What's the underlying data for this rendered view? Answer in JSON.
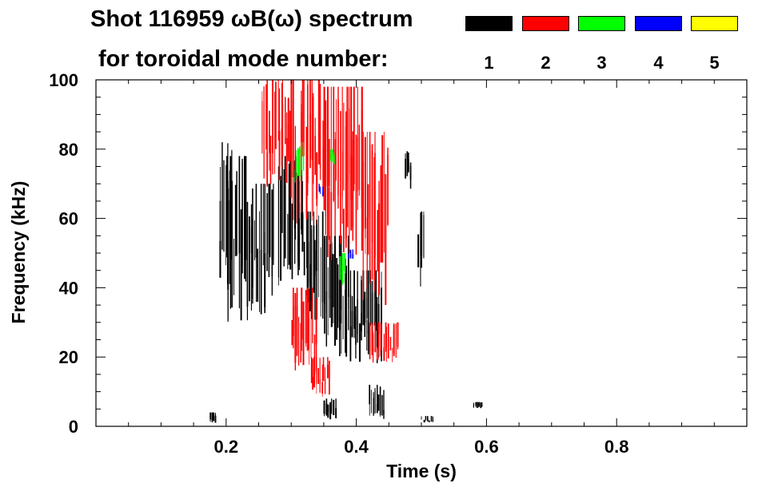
{
  "header": {
    "title_line1": "Shot 116959 ωB(ω) spectrum",
    "title_line2": "for toroidal mode number:"
  },
  "legend": [
    {
      "label": "1",
      "color": "#000000"
    },
    {
      "label": "2",
      "color": "#ff0000"
    },
    {
      "label": "3",
      "color": "#00ff00"
    },
    {
      "label": "4",
      "color": "#0000ff"
    },
    {
      "label": "5",
      "color": "#ffff00"
    }
  ],
  "chart_data": {
    "type": "heatmap",
    "title": "Shot 116959 ωB(ω) spectrum",
    "xlabel": "Time (s)",
    "ylabel": "Frequency (kHz)",
    "xlim": [
      0.0,
      1.0
    ],
    "ylim": [
      0,
      100
    ],
    "xticks": [
      {
        "value": 0.2,
        "label": "0.2"
      },
      {
        "value": 0.4,
        "label": "0.4"
      },
      {
        "value": 0.6,
        "label": "0.6"
      },
      {
        "value": 0.8,
        "label": "0.8"
      }
    ],
    "yticks": [
      {
        "value": 0,
        "label": "0"
      },
      {
        "value": 20,
        "label": "20"
      },
      {
        "value": 40,
        "label": "40"
      },
      {
        "value": 60,
        "label": "60"
      },
      {
        "value": 80,
        "label": "80"
      },
      {
        "value": 100,
        "label": "100"
      }
    ],
    "grid": false,
    "legend_position": "top-right",
    "series": [
      {
        "name": "1",
        "color": "#000000",
        "regions": [
          {
            "t": [
              0.19,
              0.21
            ],
            "f": [
              40,
              82
            ]
          },
          {
            "t": [
              0.2,
              0.235
            ],
            "f": [
              30,
              78
            ]
          },
          {
            "t": [
              0.235,
              0.275
            ],
            "f": [
              32,
              70
            ]
          },
          {
            "t": [
              0.28,
              0.32
            ],
            "f": [
              40,
              78
            ]
          },
          {
            "t": [
              0.32,
              0.35
            ],
            "f": [
              30,
              62
            ]
          },
          {
            "t": [
              0.35,
              0.39
            ],
            "f": [
              20,
              55
            ]
          },
          {
            "t": [
              0.39,
              0.44
            ],
            "f": [
              18,
              45
            ]
          },
          {
            "t": [
              0.35,
              0.37
            ],
            "f": [
              2,
              8
            ]
          },
          {
            "t": [
              0.42,
              0.445
            ],
            "f": [
              2,
              12
            ]
          },
          {
            "t": [
              0.495,
              0.505
            ],
            "f": [
              40,
              62
            ]
          },
          {
            "t": [
              0.475,
              0.485
            ],
            "f": [
              68,
              80
            ]
          },
          {
            "t": [
              0.175,
              0.185
            ],
            "f": [
              1,
              4
            ]
          },
          {
            "t": [
              0.5,
              0.52
            ],
            "f": [
              1,
              3
            ]
          },
          {
            "t": [
              0.58,
              0.595
            ],
            "f": [
              5,
              7
            ]
          }
        ]
      },
      {
        "name": "2",
        "color": "#ff0000",
        "regions": [
          {
            "t": [
              0.255,
              0.3
            ],
            "f": [
              68,
              100
            ]
          },
          {
            "t": [
              0.3,
              0.35
            ],
            "f": [
              58,
              100
            ]
          },
          {
            "t": [
              0.35,
              0.41
            ],
            "f": [
              48,
              98
            ]
          },
          {
            "t": [
              0.41,
              0.45
            ],
            "f": [
              35,
              85
            ]
          },
          {
            "t": [
              0.3,
              0.34
            ],
            "f": [
              15,
              40
            ]
          },
          {
            "t": [
              0.42,
              0.465
            ],
            "f": [
              18,
              30
            ]
          },
          {
            "t": [
              0.33,
              0.36
            ],
            "f": [
              8,
              20
            ]
          }
        ]
      },
      {
        "name": "3",
        "color": "#00ff00",
        "regions": [
          {
            "t": [
              0.305,
              0.32
            ],
            "f": [
              70,
              82
            ]
          },
          {
            "t": [
              0.375,
              0.385
            ],
            "f": [
              40,
              50
            ]
          },
          {
            "t": [
              0.36,
              0.368
            ],
            "f": [
              75,
              80
            ]
          }
        ]
      },
      {
        "name": "4",
        "color": "#0000ff",
        "regions": [
          {
            "t": [
              0.342,
              0.35
            ],
            "f": [
              66,
              70
            ]
          },
          {
            "t": [
              0.388,
              0.396
            ],
            "f": [
              48,
              52
            ]
          }
        ]
      },
      {
        "name": "5",
        "color": "#ffff00",
        "regions": []
      }
    ]
  }
}
